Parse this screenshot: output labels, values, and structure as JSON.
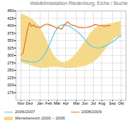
{
  "chart_data": {
    "type": "line",
    "title": "Waldklimastation Riedenburg, Eiche / Buche",
    "categories": [
      "Nov",
      null,
      null,
      null,
      "Dez",
      null,
      null,
      null,
      null,
      "Jan",
      null,
      null,
      null,
      "Feb",
      null,
      null,
      null,
      "Mär",
      null,
      null,
      null,
      "Apr",
      null,
      null,
      null,
      null,
      "Mai",
      null,
      null,
      null,
      "Jun",
      null,
      null,
      null,
      "Jul",
      null,
      null,
      null,
      "Aug",
      null,
      null,
      null,
      null,
      "Sep",
      null,
      null,
      null,
      "Okt"
    ],
    "series": [
      {
        "name": "2006/2007",
        "color": "#5bc8e8",
        "values": [
          285,
          283,
          282,
          280,
          279,
          278,
          277,
          278,
          281,
          286,
          293,
          303,
          315,
          330,
          347,
          364,
          379,
          391,
          399,
          403,
          404,
          403,
          401,
          397,
          393,
          388,
          383,
          377,
          370,
          362,
          354,
          346,
          338,
          332,
          328,
          326,
          325,
          325,
          327,
          330,
          333,
          337,
          341,
          346,
          351,
          357,
          362,
          367
        ]
      },
      {
        "name": "Wertebereich 2000 – 2006",
        "type": "area",
        "color": "#f5d98b",
        "upper": [
          440,
          438,
          435,
          432,
          428,
          424,
          418,
          411,
          403,
          393,
          381,
          368,
          353,
          337,
          321,
          307,
          296,
          288,
          282,
          278,
          277,
          278,
          281,
          285,
          291,
          298,
          306,
          315,
          325,
          335,
          346,
          357,
          368,
          377,
          385,
          392,
          397,
          400,
          402,
          404,
          405,
          406,
          407,
          408,
          410,
          412,
          414,
          415
        ],
        "lower": [
          278,
          275,
          272,
          270,
          268,
          265,
          263,
          261,
          259,
          258,
          257,
          257,
          258,
          259,
          260,
          261,
          261,
          261,
          260,
          259,
          258,
          257,
          257,
          257,
          257,
          258,
          259,
          260,
          261,
          262,
          264,
          266,
          269,
          272,
          276,
          282,
          288,
          295,
          304,
          313,
          323,
          332,
          341,
          349,
          356,
          361,
          363,
          365
        ]
      },
      {
        "name": "2008/2009",
        "color": "#e07020",
        "values": [
          302,
          308,
          345,
          385,
          410,
          398,
          403,
          395,
          397,
          393,
          399,
          403,
          406,
          405,
          402,
          399,
          395,
          392,
          393,
          388,
          398,
          408,
          413,
          406,
          403,
          401,
          397,
          395,
          395,
          393,
          394,
          394,
          396,
          398,
          402,
          405,
          403,
          400,
          402,
          398,
          400,
          401,
          400,
          null,
          null,
          null,
          null,
          null
        ]
      }
    ],
    "ylim": [
      150,
      450
    ],
    "yticks": [
      175,
      200,
      225,
      250,
      275,
      300,
      325,
      350,
      375,
      400,
      425,
      450
    ],
    "grid": true,
    "legend": "bottom"
  }
}
